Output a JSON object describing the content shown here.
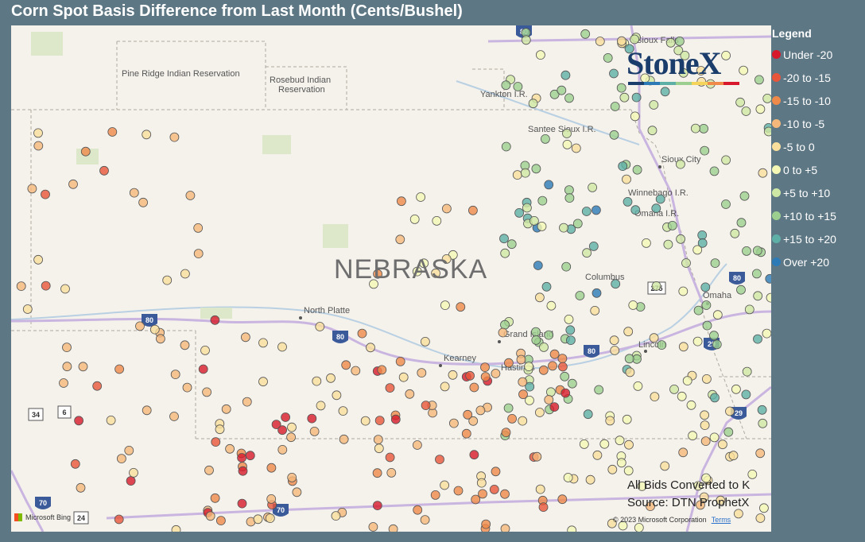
{
  "title": "Corn Spot Basis Difference from Last Month (Cents/Bushel)",
  "legend": {
    "title": "Legend",
    "items": [
      {
        "label": "Under -20",
        "color": "#d7192b"
      },
      {
        "label": "-20 to -15",
        "color": "#e8553a"
      },
      {
        "label": "-15 to -10",
        "color": "#f08a4a"
      },
      {
        "label": "-10 to -5",
        "color": "#f5b87a"
      },
      {
        "label": "-5 to 0",
        "color": "#fadf9c"
      },
      {
        "label": "0 to +5",
        "color": "#f5f7b5"
      },
      {
        "label": "+5 to +10",
        "color": "#cfe7a4"
      },
      {
        "label": "+10 to +15",
        "color": "#9ccf8f"
      },
      {
        "label": "+15 to +20",
        "color": "#5eafa6"
      },
      {
        "label": "Over +20",
        "color": "#2c7bb6"
      }
    ]
  },
  "map": {
    "state_label": "NEBRASKA",
    "places": [
      "Pine Ridge Indian Reservation",
      "Rosebud Indian Reservation",
      "North Platte",
      "Grand Island",
      "Kearney",
      "Hastings",
      "Columbus",
      "Omaha",
      "Lincoln",
      "Sioux City",
      "Sioux Falls",
      "Winnebago I.R.",
      "Omaha I.R.",
      "Yankton I.R.",
      "Santee Sioux I.R."
    ],
    "shields": [
      "80",
      "80",
      "80",
      "80",
      "80",
      "29",
      "29",
      "275",
      "34",
      "6",
      "70",
      "24",
      "70"
    ],
    "notes": [
      "All Bids Converted to K",
      "Source: DTN ProphetX"
    ],
    "copyright": "© 2023 Microsoft Corporation",
    "terms": "Terms",
    "bing": "Microsoft Bing",
    "logo": "StoneX"
  }
}
